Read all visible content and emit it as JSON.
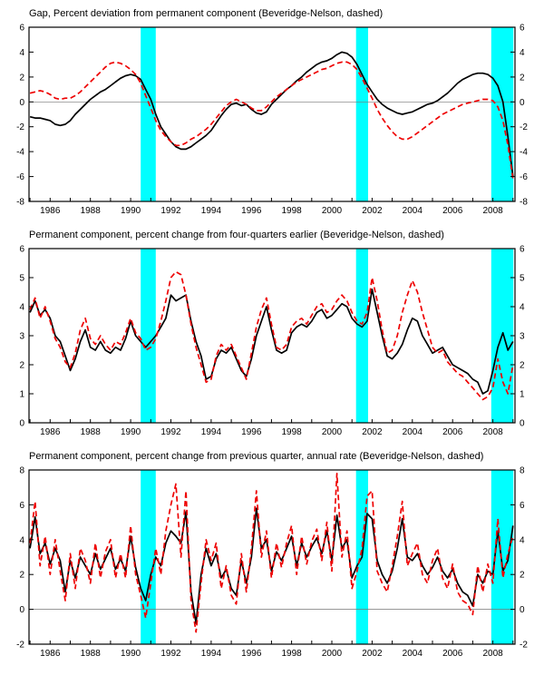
{
  "colors": {
    "band": "#00ffff",
    "solid_series": "#000000",
    "dashed_series": "#ee0000",
    "zero_line": "#777777",
    "frame": "#000000"
  },
  "x_axis": {
    "start": 1985.0,
    "step": 0.25,
    "min": 1984.95,
    "max": 2009.1,
    "labels": [
      1986,
      1988,
      1990,
      1992,
      1994,
      1996,
      1998,
      2000,
      2002,
      2004,
      2006,
      2008
    ]
  },
  "recession_bands": [
    [
      1990.5,
      1991.25
    ],
    [
      2001.2,
      2001.8
    ],
    [
      2007.92,
      2009.02
    ]
  ],
  "chart_data": [
    {
      "type": "line",
      "title": "Gap, Percent deviation from permanent component (Beveridge-Nelson, dashed)",
      "ylim": [
        -8,
        6
      ],
      "yticks": [
        -8,
        -6,
        -4,
        -2,
        0,
        2,
        4,
        6
      ],
      "zero_line": true,
      "series": [
        {
          "name": "Gap (solid)",
          "style": "solid",
          "values": [
            -1.2,
            -1.3,
            -1.3,
            -1.4,
            -1.5,
            -1.8,
            -1.9,
            -1.8,
            -1.5,
            -1.0,
            -0.6,
            -0.2,
            0.2,
            0.5,
            0.8,
            1.0,
            1.3,
            1.6,
            1.9,
            2.1,
            2.2,
            2.1,
            1.8,
            1.0,
            0.2,
            -1.0,
            -2.0,
            -2.6,
            -3.2,
            -3.6,
            -3.8,
            -3.8,
            -3.6,
            -3.3,
            -3.0,
            -2.7,
            -2.3,
            -1.7,
            -1.1,
            -0.6,
            -0.2,
            -0.1,
            -0.3,
            -0.2,
            -0.6,
            -0.9,
            -1.0,
            -0.8,
            -0.2,
            0.2,
            0.6,
            1.0,
            1.3,
            1.7,
            2.0,
            2.4,
            2.7,
            3.0,
            3.2,
            3.3,
            3.5,
            3.8,
            4.0,
            3.9,
            3.6,
            3.0,
            2.2,
            1.4,
            0.8,
            0.2,
            -0.2,
            -0.5,
            -0.7,
            -0.9,
            -1.0,
            -0.9,
            -0.8,
            -0.6,
            -0.4,
            -0.2,
            -0.1,
            0.1,
            0.4,
            0.7,
            1.1,
            1.5,
            1.8,
            2.0,
            2.2,
            2.3,
            2.3,
            2.2,
            1.9,
            1.3,
            0.0,
            -2.8,
            -6.0
          ]
        },
        {
          "name": "Beveridge-Nelson gap (dashed)",
          "style": "dashed",
          "values": [
            0.7,
            0.8,
            0.9,
            0.8,
            0.6,
            0.3,
            0.2,
            0.3,
            0.3,
            0.5,
            0.8,
            1.2,
            1.6,
            2.0,
            2.4,
            2.8,
            3.1,
            3.2,
            3.1,
            2.9,
            2.6,
            2.2,
            1.5,
            0.5,
            -0.5,
            -1.5,
            -2.3,
            -2.8,
            -3.2,
            -3.5,
            -3.5,
            -3.3,
            -3.0,
            -2.8,
            -2.5,
            -2.2,
            -1.8,
            -1.3,
            -0.8,
            -0.3,
            0.0,
            0.2,
            0.0,
            -0.2,
            -0.5,
            -0.7,
            -0.7,
            -0.4,
            0.0,
            0.4,
            0.7,
            1.0,
            1.3,
            1.6,
            1.8,
            2.0,
            2.2,
            2.4,
            2.6,
            2.7,
            2.9,
            3.1,
            3.2,
            3.2,
            3.0,
            2.6,
            1.9,
            1.1,
            0.3,
            -0.6,
            -1.3,
            -1.9,
            -2.4,
            -2.8,
            -3.0,
            -3.0,
            -2.8,
            -2.5,
            -2.2,
            -1.9,
            -1.6,
            -1.3,
            -1.0,
            -0.8,
            -0.6,
            -0.4,
            -0.2,
            -0.1,
            0.0,
            0.1,
            0.2,
            0.2,
            0.1,
            -0.4,
            -1.5,
            -3.5,
            -6.2
          ]
        }
      ]
    },
    {
      "type": "line",
      "title": "Permanent component, percent change from four-quarters earlier (Beveridge-Nelson, dashed)",
      "ylim": [
        0,
        6
      ],
      "yticks": [
        0,
        1,
        2,
        3,
        4,
        5,
        6
      ],
      "zero_line": false,
      "series": [
        {
          "name": "Permanent component (solid)",
          "style": "solid",
          "values": [
            3.8,
            4.2,
            3.7,
            3.9,
            3.6,
            3.0,
            2.8,
            2.3,
            1.8,
            2.2,
            2.8,
            3.2,
            2.6,
            2.5,
            2.8,
            2.5,
            2.4,
            2.6,
            2.5,
            2.9,
            3.5,
            3.0,
            2.8,
            2.6,
            2.8,
            3.0,
            3.3,
            3.6,
            4.4,
            4.2,
            4.3,
            4.4,
            3.5,
            2.8,
            2.3,
            1.5,
            1.6,
            2.2,
            2.5,
            2.4,
            2.6,
            2.2,
            1.8,
            1.6,
            2.2,
            3.0,
            3.5,
            4.0,
            3.2,
            2.5,
            2.4,
            2.5,
            3.1,
            3.3,
            3.4,
            3.3,
            3.5,
            3.8,
            3.9,
            3.6,
            3.7,
            3.9,
            4.1,
            4.0,
            3.6,
            3.4,
            3.3,
            3.5,
            4.6,
            3.8,
            3.0,
            2.3,
            2.2,
            2.4,
            2.7,
            3.2,
            3.6,
            3.5,
            3.0,
            2.7,
            2.4,
            2.5,
            2.6,
            2.3,
            2.0,
            1.9,
            1.8,
            1.7,
            1.5,
            1.4,
            1.0,
            1.1,
            1.8,
            2.6,
            3.1,
            2.5,
            2.8
          ]
        },
        {
          "name": "Beveridge-Nelson (dashed)",
          "style": "dashed",
          "values": [
            3.9,
            4.3,
            3.6,
            4.0,
            3.5,
            2.9,
            2.6,
            2.1,
            1.9,
            2.4,
            3.2,
            3.6,
            2.9,
            2.7,
            3.0,
            2.7,
            2.5,
            2.8,
            2.7,
            3.1,
            3.6,
            3.1,
            2.9,
            2.5,
            2.6,
            2.9,
            3.5,
            4.2,
            5.0,
            5.2,
            5.1,
            4.4,
            3.4,
            2.6,
            2.0,
            1.4,
            1.5,
            2.3,
            2.7,
            2.5,
            2.7,
            2.3,
            1.9,
            1.5,
            2.4,
            3.3,
            3.9,
            4.3,
            3.4,
            2.6,
            2.5,
            2.7,
            3.3,
            3.5,
            3.6,
            3.4,
            3.7,
            4.0,
            4.1,
            3.8,
            3.9,
            4.2,
            4.4,
            4.2,
            3.8,
            3.5,
            3.4,
            3.8,
            5.0,
            4.2,
            3.2,
            2.4,
            2.5,
            3.0,
            3.8,
            4.4,
            4.9,
            4.5,
            3.8,
            3.2,
            2.6,
            2.4,
            2.5,
            2.1,
            1.9,
            1.7,
            1.6,
            1.4,
            1.2,
            1.0,
            0.8,
            0.9,
            1.2,
            2.2,
            1.4,
            1.0,
            2.0
          ]
        }
      ]
    },
    {
      "type": "line",
      "title": "Permanent component, percent change from previous quarter, annual rate (Beveridge-Nelson, dashed)",
      "ylim": [
        -2,
        8
      ],
      "yticks": [
        -2,
        0,
        2,
        4,
        6,
        8
      ],
      "zero_line": true,
      "series": [
        {
          "name": "Permanent component (solid)",
          "style": "solid",
          "values": [
            3.5,
            5.3,
            3.2,
            3.8,
            2.6,
            3.5,
            2.8,
            1.0,
            2.8,
            1.8,
            3.0,
            2.5,
            2.0,
            3.2,
            2.3,
            2.9,
            3.5,
            2.3,
            2.9,
            2.2,
            4.2,
            2.4,
            1.2,
            0.5,
            2.0,
            3.0,
            2.5,
            3.8,
            4.5,
            4.2,
            3.8,
            5.6,
            1.0,
            -0.8,
            2.0,
            3.5,
            2.5,
            3.2,
            1.8,
            2.3,
            1.2,
            0.8,
            2.8,
            1.5,
            3.0,
            5.8,
            3.5,
            4.0,
            2.2,
            3.3,
            2.8,
            3.5,
            4.2,
            2.5,
            3.8,
            3.0,
            3.6,
            4.1,
            3.2,
            4.5,
            2.8,
            5.4,
            3.5,
            4.0,
            1.8,
            2.5,
            3.0,
            5.5,
            5.2,
            2.8,
            2.0,
            1.5,
            2.2,
            3.5,
            5.2,
            3.0,
            2.8,
            3.2,
            2.5,
            2.0,
            2.4,
            3.0,
            2.2,
            1.8,
            2.3,
            1.5,
            1.0,
            0.8,
            0.2,
            2.0,
            1.5,
            2.2,
            2.0,
            4.5,
            2.2,
            2.8,
            4.8
          ]
        },
        {
          "name": "Beveridge-Nelson (dashed)",
          "style": "dashed",
          "values": [
            3.8,
            6.2,
            2.5,
            4.2,
            2.0,
            4.0,
            2.2,
            0.5,
            3.2,
            1.2,
            3.5,
            2.8,
            1.5,
            3.8,
            1.8,
            3.3,
            4.0,
            1.8,
            3.2,
            1.8,
            4.8,
            2.0,
            0.8,
            -0.5,
            1.5,
            3.5,
            2.0,
            4.5,
            6.0,
            7.2,
            3.0,
            6.8,
            0.5,
            -1.3,
            1.5,
            4.0,
            2.8,
            3.8,
            1.2,
            2.5,
            0.8,
            0.3,
            3.2,
            1.0,
            3.5,
            6.8,
            3.0,
            4.5,
            1.8,
            3.8,
            2.4,
            3.8,
            4.8,
            2.0,
            4.2,
            2.6,
            3.9,
            4.6,
            2.8,
            5.0,
            2.2,
            7.8,
            3.0,
            4.5,
            1.2,
            2.2,
            3.5,
            6.5,
            6.8,
            2.2,
            1.5,
            1.0,
            2.5,
            4.2,
            6.2,
            2.5,
            3.2,
            3.8,
            2.0,
            1.5,
            2.8,
            3.5,
            1.8,
            1.2,
            2.6,
            1.0,
            0.5,
            0.3,
            -0.3,
            2.5,
            1.0,
            2.6,
            1.5,
            5.2,
            1.8,
            3.2,
            4.2
          ]
        }
      ]
    }
  ]
}
